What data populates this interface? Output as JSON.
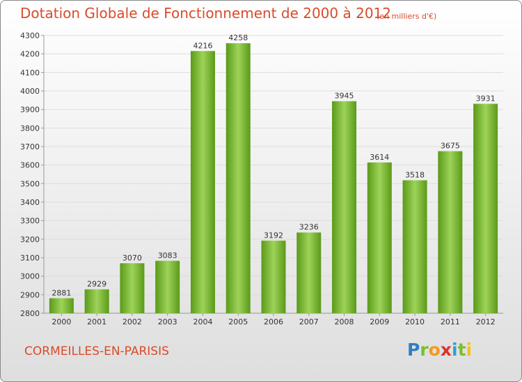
{
  "header": {
    "title": "Dotation Globale de Fonctionnement de 2000 à 2012",
    "unit": "(en milliers d'€)"
  },
  "footer": {
    "city": "CORMEILLES-EN-PARISIS",
    "logo_letters": [
      {
        "ch": "P",
        "color": "#2f7fc1"
      },
      {
        "ch": "r",
        "color": "#7cbf2f"
      },
      {
        "ch": "o",
        "color": "#f29a1f"
      },
      {
        "ch": "x",
        "color": "#d9342b"
      },
      {
        "ch": "i",
        "color": "#2f9fd1"
      },
      {
        "ch": "t",
        "color": "#7cbf2f"
      },
      {
        "ch": "i",
        "color": "#f2c21f"
      }
    ]
  },
  "colors": {
    "bar_light": "#9ed35a",
    "bar_dark": "#5a9a18",
    "grid": "#dddddd",
    "axis": "#999999",
    "title": "#d94b2b"
  },
  "chart_data": {
    "type": "bar",
    "categories": [
      "2000",
      "2001",
      "2002",
      "2003",
      "2004",
      "2005",
      "2006",
      "2007",
      "2008",
      "2009",
      "2010",
      "2011",
      "2012"
    ],
    "values": [
      2881,
      2929,
      3070,
      3083,
      4216,
      4258,
      3192,
      3236,
      3945,
      3614,
      3518,
      3675,
      3931
    ],
    "ylim": [
      2800,
      4300
    ],
    "ytick_step": 100,
    "grid": true,
    "legend": "none"
  }
}
